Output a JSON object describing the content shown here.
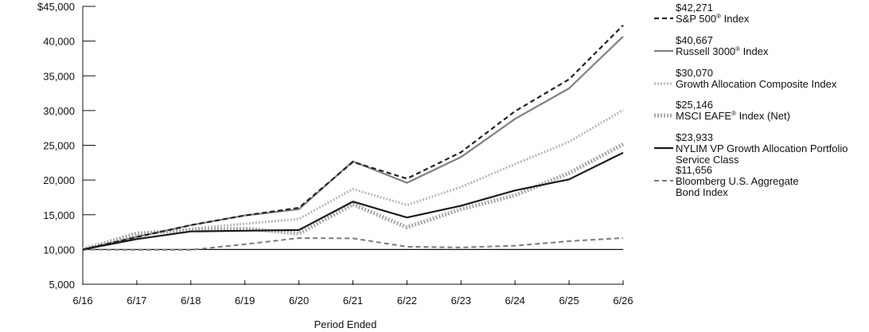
{
  "chart_data": {
    "type": "line",
    "xlabel": "Period Ended",
    "ylabel": "",
    "x": [
      "6/16",
      "6/17",
      "6/18",
      "6/19",
      "6/20",
      "6/21",
      "6/22",
      "6/23",
      "6/24",
      "6/25",
      "6/26"
    ],
    "ylim": [
      5000,
      45000
    ],
    "yticks": [
      5000,
      10000,
      15000,
      20000,
      25000,
      30000,
      35000,
      40000,
      45000
    ],
    "ytick_labels": [
      "5,000",
      "10,000",
      "15,000",
      "20,000",
      "25,000",
      "30,000",
      "35,000",
      "40,000",
      "$45,000"
    ],
    "legend_position": "right",
    "series": [
      {
        "key": "sp500",
        "name": "S&P 500",
        "name_suffix": " Index",
        "sup": "®",
        "value_label": "$42,271",
        "color": "#222222",
        "values": [
          10000,
          11800,
          13500,
          14900,
          16000,
          22600,
          20200,
          24000,
          29900,
          34500,
          42271
        ]
      },
      {
        "key": "russell",
        "name": "Russell 3000",
        "name_suffix": " Index",
        "sup": "®",
        "value_label": "$40,667",
        "color": "#808080",
        "values": [
          10000,
          11800,
          13500,
          14900,
          15800,
          22700,
          19600,
          23300,
          28800,
          33200,
          40667
        ]
      },
      {
        "key": "growthcomp",
        "name": "Growth Allocation Composite Index",
        "value_label": "$30,070",
        "color": "#b8b8b8",
        "values": [
          10000,
          12000,
          13000,
          13700,
          14400,
          18700,
          16400,
          19000,
          22300,
          25500,
          30070
        ]
      },
      {
        "key": "eafe",
        "name": "MSCI EAFE",
        "name_suffix": " Index (Net)",
        "sup": "®",
        "value_label": "$25,146",
        "color": "#a8a8a8",
        "values": [
          10000,
          12300,
          12800,
          13000,
          12300,
          16500,
          13200,
          15800,
          17800,
          21000,
          25146
        ]
      },
      {
        "key": "nylim",
        "name": "NYLIM VP Growth Allocation Portfolio",
        "name_line2": "Service Class",
        "value_label": "$23,933",
        "color": "#1a1a1a",
        "values": [
          10000,
          11500,
          12600,
          12700,
          12800,
          16900,
          14600,
          16300,
          18500,
          20100,
          23933
        ]
      },
      {
        "key": "bloomberg",
        "name": "Bloomberg U.S. Aggregate",
        "name_line2": "Bond Index",
        "value_label": "$11,656",
        "color": "#7a7a7a",
        "values": [
          10000,
          9950,
          9950,
          10750,
          11650,
          11600,
          10400,
          10300,
          10550,
          11200,
          11656
        ]
      }
    ]
  }
}
